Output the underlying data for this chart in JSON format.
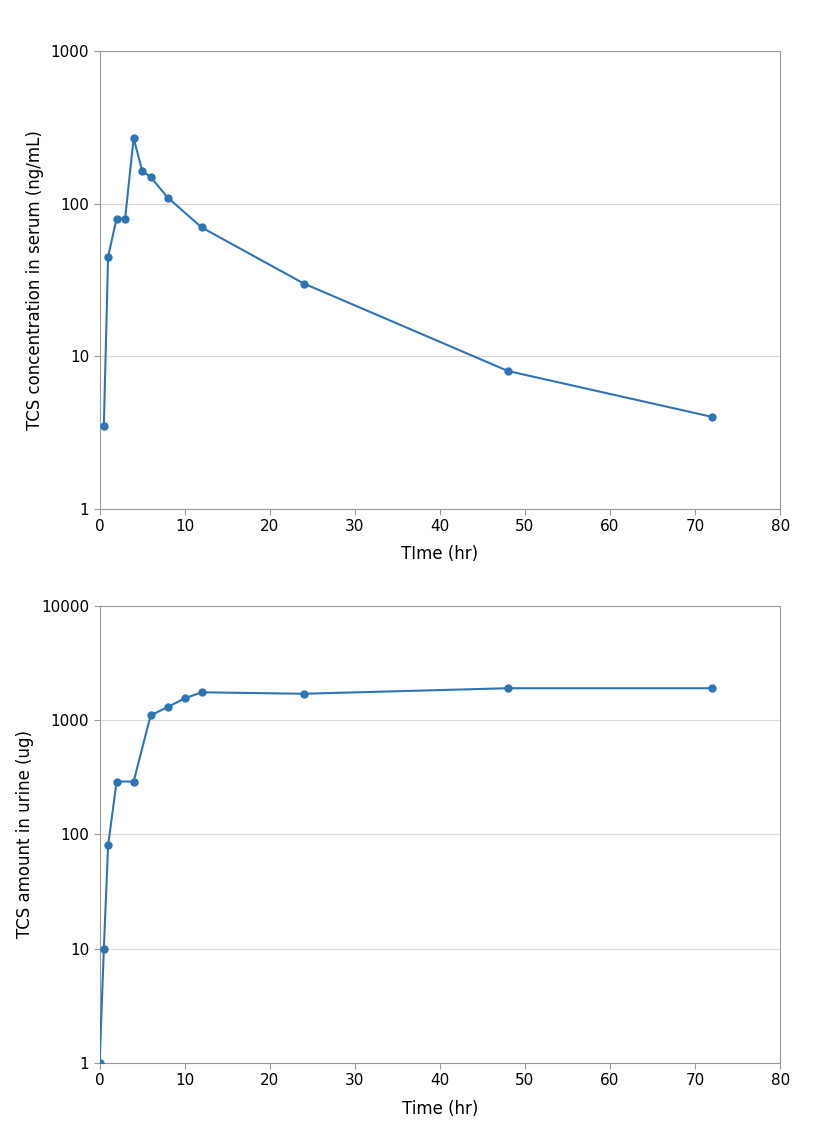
{
  "serum_time": [
    0.5,
    1,
    2,
    3,
    4,
    5,
    6,
    8,
    12,
    24,
    48,
    72
  ],
  "serum_conc": [
    3.5,
    45,
    80,
    80,
    270,
    165,
    150,
    110,
    70,
    30,
    8,
    4
  ],
  "urine_time": [
    0,
    0.5,
    1,
    2,
    4,
    6,
    8,
    10,
    12,
    24,
    48,
    72
  ],
  "urine_amount": [
    1.0,
    10,
    80,
    290,
    290,
    1100,
    1300,
    1550,
    1750,
    1700,
    1900,
    1900
  ],
  "serum_ylabel": "TCS concentration in serum (ng/mL)",
  "urine_ylabel": "TCS amount in urine (ug)",
  "serum_xlabel": "TIme (hr)",
  "urine_xlabel": "Time (hr)",
  "serum_ylim": [
    1,
    1000
  ],
  "urine_ylim": [
    1,
    10000
  ],
  "xlim": [
    0,
    80
  ],
  "xticks": [
    0,
    10,
    20,
    30,
    40,
    50,
    60,
    70,
    80
  ],
  "serum_yticks": [
    1,
    10,
    100,
    1000
  ],
  "urine_yticks": [
    1,
    10,
    100,
    1000,
    10000
  ],
  "line_color": "#2e74b5",
  "marker": "o",
  "markersize": 5,
  "linewidth": 1.5,
  "plot_bg_color": "#ffffff",
  "fig_bg_color": "#ffffff",
  "grid_color": "#d9d9d9",
  "border_color": "#999999",
  "tick_label_size": 11,
  "axis_label_size": 12,
  "ylabel_rotation": 90,
  "outer_bg_color": "#d9d9d9"
}
